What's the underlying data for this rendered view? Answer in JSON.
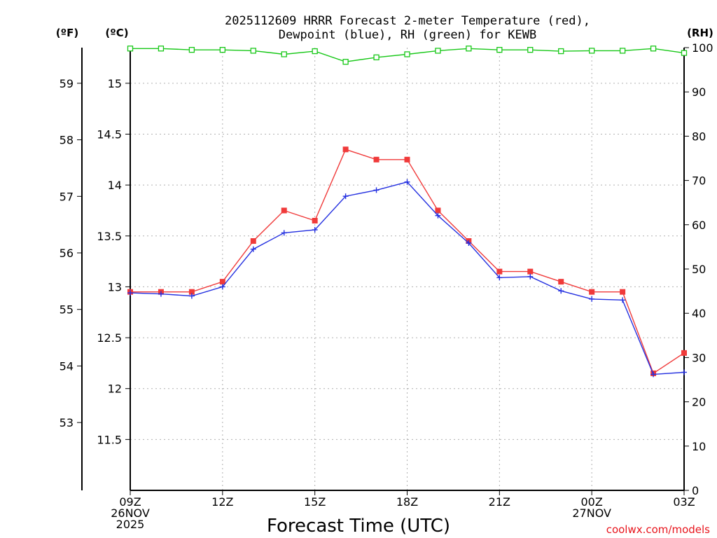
{
  "chart_data": {
    "type": "line",
    "title_line1": "2025112609 HRRR Forecast 2-meter Temperature (red),",
    "title_line2": "Dewpoint (blue), RH (green) for KEWB",
    "xlabel": "Forecast Time (UTC)",
    "credit": "coolwx.com/models",
    "units": {
      "fahrenheit": "(ºF)",
      "celsius": "(ºC)",
      "rh": "(RH)"
    },
    "x_hours": [
      0,
      18
    ],
    "x_ticks": [
      {
        "hour": 0,
        "lines": [
          "09Z",
          "26NOV",
          "2025"
        ]
      },
      {
        "hour": 3,
        "lines": [
          "12Z"
        ]
      },
      {
        "hour": 6,
        "lines": [
          "15Z"
        ]
      },
      {
        "hour": 9,
        "lines": [
          "18Z"
        ]
      },
      {
        "hour": 12,
        "lines": [
          "21Z"
        ]
      },
      {
        "hour": 15,
        "lines": [
          "00Z",
          "27NOV"
        ]
      },
      {
        "hour": 18,
        "lines": [
          "03Z"
        ]
      }
    ],
    "ylim_celsius": [
      11.0,
      15.35
    ],
    "y_ticks_celsius": [
      "11.5",
      "12",
      "12.5",
      "13",
      "13.5",
      "14",
      "14.5",
      "15"
    ],
    "y_ticks_fahrenheit": [
      "53",
      "54",
      "55",
      "56",
      "57",
      "58",
      "59"
    ],
    "ylim_rh": [
      0,
      100
    ],
    "y_ticks_rh": [
      "0",
      "10",
      "20",
      "30",
      "40",
      "50",
      "60",
      "70",
      "80",
      "90",
      "100"
    ],
    "series": [
      {
        "name": "Temperature",
        "color": "#f03a3a",
        "marker": "square",
        "axis": "celsius",
        "x": [
          0,
          1,
          2,
          3,
          4,
          5,
          6,
          7,
          8,
          9,
          10,
          11,
          12,
          13,
          14,
          15,
          16,
          17,
          18
        ],
        "values": [
          12.95,
          12.95,
          12.95,
          13.05,
          13.45,
          13.75,
          13.65,
          14.35,
          14.25,
          14.25,
          13.75,
          13.45,
          13.15,
          13.15,
          13.05,
          12.95,
          12.95,
          12.15,
          12.35
        ]
      },
      {
        "name": "Dewpoint",
        "color": "#2430e0",
        "marker": "plus",
        "axis": "celsius",
        "x": [
          0,
          1,
          2,
          3,
          4,
          5,
          6,
          7,
          8,
          9,
          10,
          11,
          12,
          13,
          14,
          15,
          16,
          17,
          18
        ],
        "values": [
          12.94,
          12.93,
          12.91,
          13.0,
          13.37,
          13.53,
          13.56,
          13.89,
          13.95,
          14.03,
          13.7,
          13.43,
          13.09,
          13.1,
          12.96,
          12.88,
          12.87,
          12.14,
          12.16
        ]
      },
      {
        "name": "Relative Humidity",
        "color": "#18c818",
        "marker": "open-square",
        "axis": "rh",
        "x": [
          0,
          1,
          2,
          3,
          4,
          5,
          6,
          7,
          8,
          9,
          10,
          11,
          12,
          13,
          14,
          15,
          16,
          17,
          18
        ],
        "values": [
          99.8,
          99.8,
          99.5,
          99.5,
          99.3,
          98.5,
          99.2,
          96.8,
          97.8,
          98.5,
          99.3,
          99.8,
          99.5,
          99.5,
          99.2,
          99.3,
          99.3,
          99.8,
          98.8
        ]
      }
    ]
  }
}
